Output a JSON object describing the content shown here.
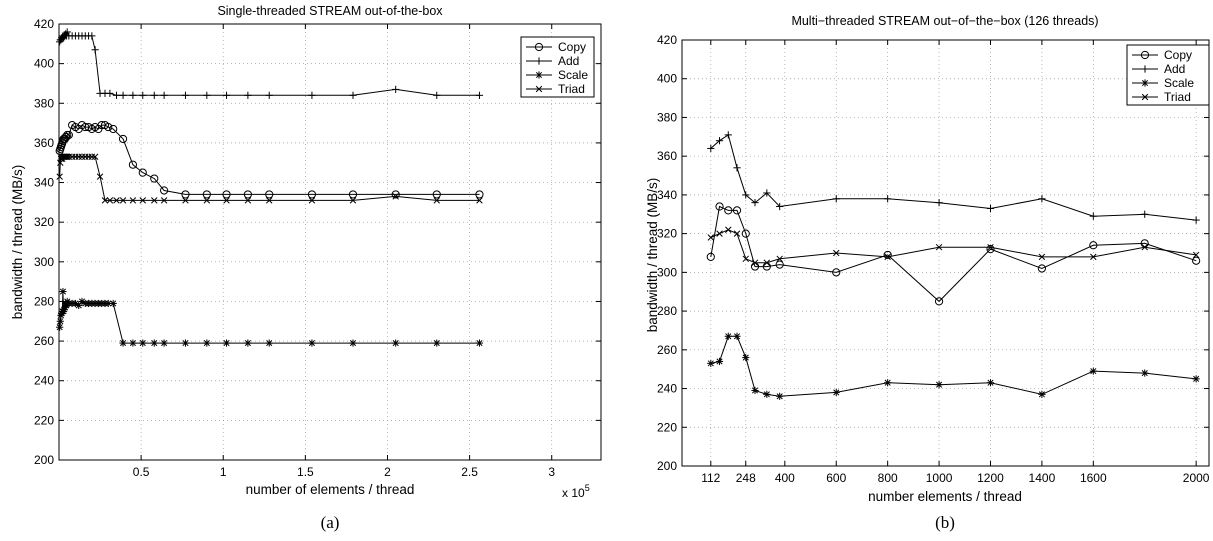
{
  "chart_data": [
    {
      "type": "line",
      "title": "Single-threaded STREAM out-of-the-box",
      "xlabel": "number of elements / thread",
      "ylabel": "bandwidth / thread (MB/s)",
      "x_multiplier_label": "x 10",
      "x_multiplier_exponent": "5",
      "caption": "(a)",
      "xlim": [
        0,
        3.3
      ],
      "ylim": [
        200,
        420
      ],
      "xticks": [
        0.5,
        1,
        1.5,
        2,
        2.5,
        3
      ],
      "xtick_labels": [
        "0.5",
        "1",
        "1.5",
        "2",
        "2.5",
        "3"
      ],
      "yticks": [
        200,
        220,
        240,
        260,
        280,
        300,
        320,
        340,
        360,
        380,
        400,
        420
      ],
      "grid": true,
      "legend_position": "top-right",
      "series": [
        {
          "name": "Copy",
          "marker": "circle",
          "points": [
            [
              0.004,
              356
            ],
            [
              0.008,
              357
            ],
            [
              0.012,
              358
            ],
            [
              0.016,
              359
            ],
            [
              0.02,
              360
            ],
            [
              0.024,
              361
            ],
            [
              0.028,
              362
            ],
            [
              0.032,
              362
            ],
            [
              0.036,
              362
            ],
            [
              0.04,
              363
            ],
            [
              0.045,
              363
            ],
            [
              0.05,
              364
            ],
            [
              0.06,
              364
            ],
            [
              0.08,
              369
            ],
            [
              0.1,
              368
            ],
            [
              0.12,
              367
            ],
            [
              0.14,
              369
            ],
            [
              0.16,
              368
            ],
            [
              0.18,
              368
            ],
            [
              0.2,
              367
            ],
            [
              0.22,
              368
            ],
            [
              0.24,
              367
            ],
            [
              0.26,
              369
            ],
            [
              0.28,
              369
            ],
            [
              0.3,
              368
            ],
            [
              0.33,
              367
            ],
            [
              0.39,
              362
            ],
            [
              0.45,
              349
            ],
            [
              0.51,
              345
            ],
            [
              0.58,
              342
            ],
            [
              0.64,
              336
            ],
            [
              0.77,
              334
            ],
            [
              0.9,
              334
            ],
            [
              1.02,
              334
            ],
            [
              1.15,
              334
            ],
            [
              1.28,
              334
            ],
            [
              1.54,
              334
            ],
            [
              1.79,
              334
            ],
            [
              2.05,
              334
            ],
            [
              2.3,
              334
            ],
            [
              2.56,
              334
            ]
          ]
        },
        {
          "name": "Add",
          "marker": "plus",
          "points": [
            [
              0.004,
              411
            ],
            [
              0.008,
              412
            ],
            [
              0.012,
              412
            ],
            [
              0.016,
              413
            ],
            [
              0.02,
              413
            ],
            [
              0.024,
              414
            ],
            [
              0.028,
              413
            ],
            [
              0.032,
              414
            ],
            [
              0.036,
              414
            ],
            [
              0.04,
              415
            ],
            [
              0.045,
              414
            ],
            [
              0.05,
              416
            ],
            [
              0.06,
              414
            ],
            [
              0.08,
              414
            ],
            [
              0.1,
              414
            ],
            [
              0.12,
              414
            ],
            [
              0.14,
              414
            ],
            [
              0.16,
              414
            ],
            [
              0.18,
              414
            ],
            [
              0.2,
              414
            ],
            [
              0.22,
              407
            ],
            [
              0.25,
              385
            ],
            [
              0.28,
              385
            ],
            [
              0.31,
              385
            ],
            [
              0.35,
              384
            ],
            [
              0.39,
              384
            ],
            [
              0.45,
              384
            ],
            [
              0.51,
              384
            ],
            [
              0.58,
              384
            ],
            [
              0.64,
              384
            ],
            [
              0.77,
              384
            ],
            [
              0.9,
              384
            ],
            [
              1.02,
              384
            ],
            [
              1.15,
              384
            ],
            [
              1.28,
              384
            ],
            [
              1.54,
              384
            ],
            [
              1.79,
              384
            ],
            [
              2.05,
              387
            ],
            [
              2.3,
              384
            ],
            [
              2.56,
              384
            ]
          ]
        },
        {
          "name": "Scale",
          "marker": "star",
          "points": [
            [
              0.004,
              267
            ],
            [
              0.008,
              270
            ],
            [
              0.012,
              273
            ],
            [
              0.016,
              274
            ],
            [
              0.02,
              275
            ],
            [
              0.024,
              285
            ],
            [
              0.028,
              275
            ],
            [
              0.032,
              276
            ],
            [
              0.036,
              277
            ],
            [
              0.04,
              279
            ],
            [
              0.045,
              278
            ],
            [
              0.05,
              280
            ],
            [
              0.06,
              279
            ],
            [
              0.08,
              279
            ],
            [
              0.1,
              279
            ],
            [
              0.12,
              278
            ],
            [
              0.14,
              280
            ],
            [
              0.16,
              279
            ],
            [
              0.18,
              279
            ],
            [
              0.2,
              279
            ],
            [
              0.22,
              279
            ],
            [
              0.24,
              279
            ],
            [
              0.26,
              279
            ],
            [
              0.28,
              279
            ],
            [
              0.3,
              279
            ],
            [
              0.33,
              279
            ],
            [
              0.39,
              259
            ],
            [
              0.45,
              259
            ],
            [
              0.51,
              259
            ],
            [
              0.58,
              259
            ],
            [
              0.64,
              259
            ],
            [
              0.77,
              259
            ],
            [
              0.9,
              259
            ],
            [
              1.02,
              259
            ],
            [
              1.15,
              259
            ],
            [
              1.28,
              259
            ],
            [
              1.54,
              259
            ],
            [
              1.79,
              259
            ],
            [
              2.05,
              259
            ],
            [
              2.3,
              259
            ],
            [
              2.56,
              259
            ]
          ]
        },
        {
          "name": "Triad",
          "marker": "cross",
          "points": [
            [
              0.004,
              343
            ],
            [
              0.008,
              350
            ],
            [
              0.012,
              352
            ],
            [
              0.016,
              353
            ],
            [
              0.02,
              352
            ],
            [
              0.024,
              353
            ],
            [
              0.028,
              353
            ],
            [
              0.032,
              353
            ],
            [
              0.036,
              353
            ],
            [
              0.04,
              353
            ],
            [
              0.045,
              353
            ],
            [
              0.05,
              353
            ],
            [
              0.06,
              353
            ],
            [
              0.08,
              353
            ],
            [
              0.1,
              353
            ],
            [
              0.12,
              353
            ],
            [
              0.14,
              353
            ],
            [
              0.16,
              353
            ],
            [
              0.18,
              353
            ],
            [
              0.2,
              353
            ],
            [
              0.22,
              353
            ],
            [
              0.25,
              343
            ],
            [
              0.28,
              331
            ],
            [
              0.31,
              331
            ],
            [
              0.35,
              331
            ],
            [
              0.39,
              331
            ],
            [
              0.45,
              331
            ],
            [
              0.51,
              331
            ],
            [
              0.58,
              331
            ],
            [
              0.64,
              331
            ],
            [
              0.77,
              331
            ],
            [
              0.9,
              331
            ],
            [
              1.02,
              331
            ],
            [
              1.15,
              331
            ],
            [
              1.28,
              331
            ],
            [
              1.54,
              331
            ],
            [
              1.79,
              331
            ],
            [
              2.05,
              333
            ],
            [
              2.3,
              331
            ],
            [
              2.56,
              331
            ]
          ]
        }
      ]
    },
    {
      "type": "line",
      "title": "Multi−threaded STREAM out−of−the−box (126 threads)",
      "xlabel": "number elements / thread",
      "ylabel": "bandwidth / thread (MB/s)",
      "caption": "(b)",
      "xlim": [
        0,
        2050
      ],
      "ylim": [
        200,
        420
      ],
      "xticks": [
        112,
        248,
        400,
        600,
        800,
        1000,
        1200,
        1400,
        1600,
        2000
      ],
      "xtick_labels": [
        "112",
        "248",
        "400",
        "600",
        "800",
        "1000",
        "1200",
        "1400",
        "1600",
        "2000"
      ],
      "yticks": [
        200,
        220,
        240,
        260,
        280,
        300,
        320,
        340,
        360,
        380,
        400,
        420
      ],
      "grid": true,
      "legend_position": "top-right",
      "series": [
        {
          "name": "Copy",
          "marker": "circle",
          "points": [
            [
              112,
              308
            ],
            [
              146,
              334
            ],
            [
              180,
              332
            ],
            [
              214,
              332
            ],
            [
              248,
              320
            ],
            [
              284,
              303
            ],
            [
              330,
              303
            ],
            [
              380,
              304
            ],
            [
              600,
              300
            ],
            [
              800,
              309
            ],
            [
              1000,
              285
            ],
            [
              1200,
              312
            ],
            [
              1400,
              302
            ],
            [
              1600,
              314
            ],
            [
              1800,
              315
            ],
            [
              2000,
              306
            ]
          ]
        },
        {
          "name": "Add",
          "marker": "plus",
          "points": [
            [
              112,
              364
            ],
            [
              146,
              368
            ],
            [
              180,
              371
            ],
            [
              214,
              354
            ],
            [
              248,
              340
            ],
            [
              284,
              336
            ],
            [
              330,
              341
            ],
            [
              380,
              334
            ],
            [
              600,
              338
            ],
            [
              800,
              338
            ],
            [
              1000,
              336
            ],
            [
              1200,
              333
            ],
            [
              1400,
              338
            ],
            [
              1600,
              329
            ],
            [
              1800,
              330
            ],
            [
              2000,
              327
            ]
          ]
        },
        {
          "name": "Scale",
          "marker": "star",
          "points": [
            [
              112,
              253
            ],
            [
              146,
              254
            ],
            [
              180,
              267
            ],
            [
              214,
              267
            ],
            [
              248,
              256
            ],
            [
              284,
              239
            ],
            [
              330,
              237
            ],
            [
              380,
              236
            ],
            [
              600,
              238
            ],
            [
              800,
              243
            ],
            [
              1000,
              242
            ],
            [
              1200,
              243
            ],
            [
              1400,
              237
            ],
            [
              1600,
              249
            ],
            [
              1800,
              248
            ],
            [
              2000,
              245
            ]
          ]
        },
        {
          "name": "Triad",
          "marker": "cross",
          "points": [
            [
              112,
              318
            ],
            [
              146,
              320
            ],
            [
              180,
              322
            ],
            [
              214,
              320
            ],
            [
              248,
              307
            ],
            [
              284,
              305
            ],
            [
              330,
              305
            ],
            [
              380,
              307
            ],
            [
              600,
              310
            ],
            [
              800,
              308
            ],
            [
              1000,
              313
            ],
            [
              1200,
              313
            ],
            [
              1400,
              308
            ],
            [
              1600,
              308
            ],
            [
              1800,
              313
            ],
            [
              2000,
              309
            ]
          ]
        }
      ]
    }
  ]
}
